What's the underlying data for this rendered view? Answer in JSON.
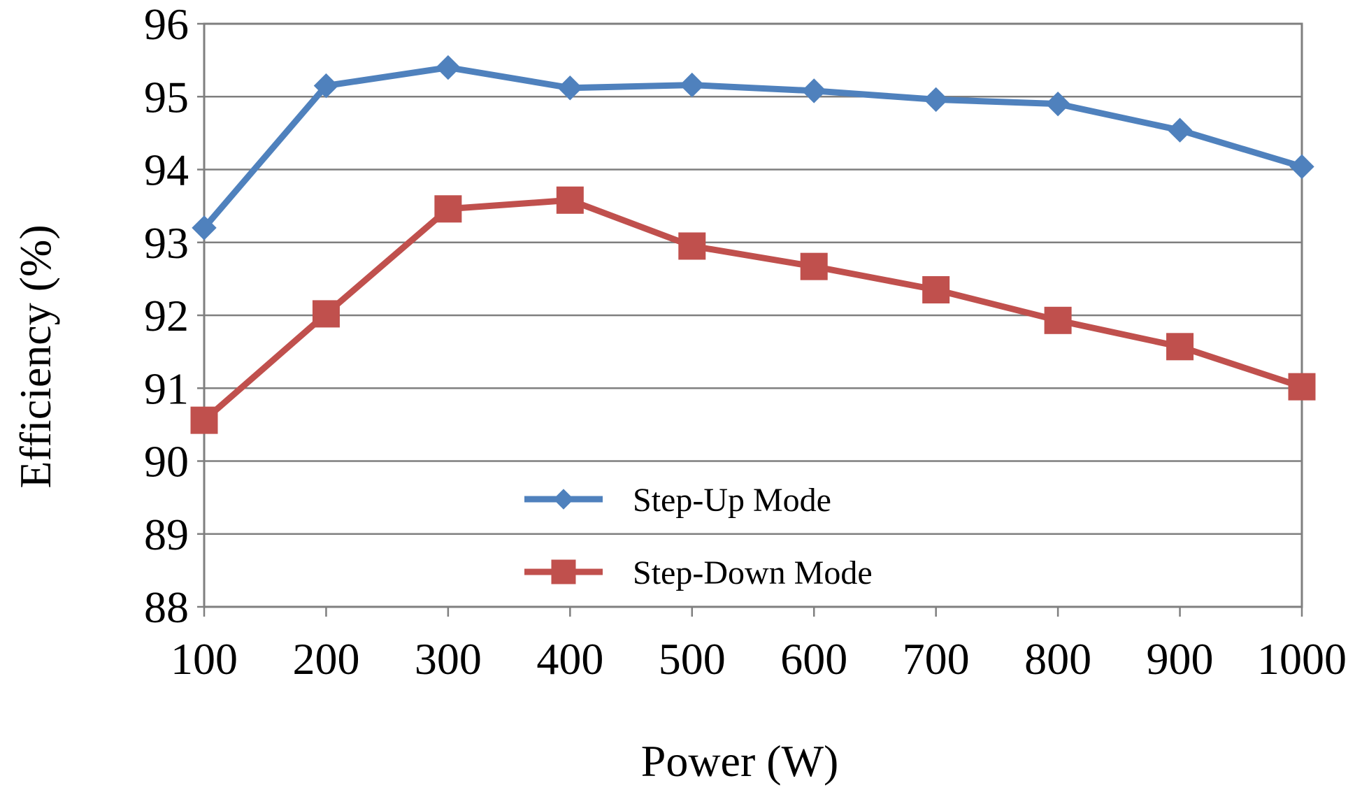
{
  "chart_data": {
    "type": "line",
    "title": "",
    "xlabel": "Power (W)",
    "ylabel": "Efficiency (%)",
    "categories": [
      "100",
      "200",
      "300",
      "400",
      "500",
      "600",
      "700",
      "800",
      "900",
      "1000"
    ],
    "ylim": [
      88,
      96
    ],
    "yticks": [
      "88",
      "89",
      "90",
      "91",
      "92",
      "93",
      "94",
      "95",
      "96"
    ],
    "grid": true,
    "legend_position": "bottom-center",
    "series": [
      {
        "name": "Step-Up Mode",
        "color": "#4F81BD",
        "marker": "diamond",
        "values": [
          93.2,
          95.15,
          95.4,
          95.12,
          95.16,
          95.08,
          94.96,
          94.9,
          94.54,
          94.04
        ]
      },
      {
        "name": "Step-Down Mode",
        "color": "#C0504D",
        "marker": "square",
        "values": [
          90.56,
          92.02,
          93.46,
          93.58,
          92.95,
          92.67,
          92.35,
          91.93,
          91.57,
          91.02
        ]
      }
    ]
  }
}
